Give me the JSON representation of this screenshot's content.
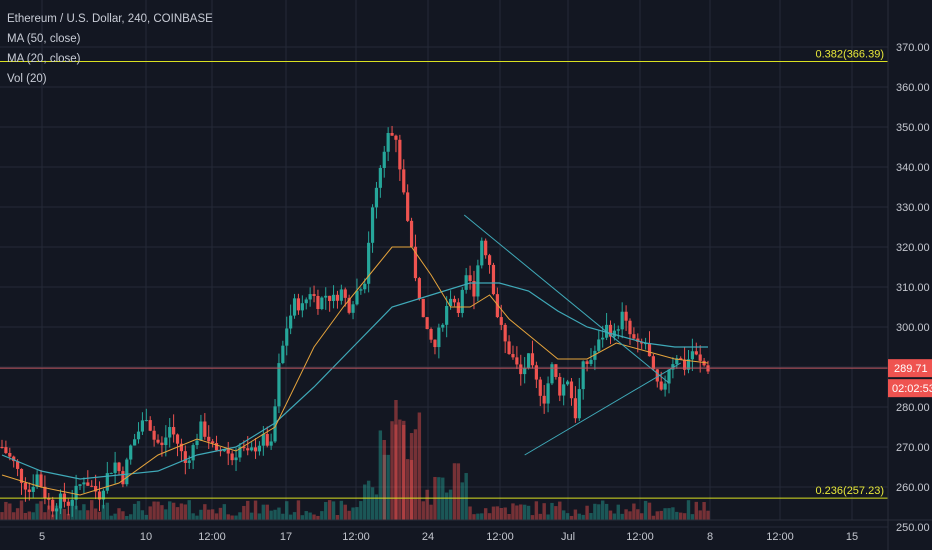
{
  "legend": {
    "title": "Ethereum / U.S. Dollar, 240, COINBASE",
    "ma50": "MA (50, close)",
    "ma20": "MA (20, close)",
    "vol": "Vol (20)"
  },
  "price_tag": {
    "value": "289.71",
    "countdown": "02:02:53"
  },
  "colors": {
    "background": "#131722",
    "grid": "#252a38",
    "up": "#26a69a",
    "down": "#ef5350",
    "ma50": "#3fa9b8",
    "ma20": "#e6a43c",
    "fib": "#d9e021",
    "price_line": "#c0555f",
    "trendline": "#3fa9b8"
  },
  "chart_data": {
    "type": "candlestick",
    "title": "Ethereum / U.S. Dollar, 240, COINBASE",
    "y_ticks": [
      250,
      260,
      270,
      280,
      290,
      300,
      310,
      320,
      330,
      340,
      350,
      360,
      370
    ],
    "y_tick_labels": [
      "250.00",
      "260.00",
      "270.00",
      "280.00",
      "290.00",
      "300.00",
      "310.00",
      "320.00",
      "330.00",
      "340.00",
      "350.00",
      "360.00",
      "370.00"
    ],
    "ylim": [
      247,
      380
    ],
    "x_tick_labels": [
      "5",
      "10",
      "12:00",
      "17",
      "12:00",
      "24",
      "12:00",
      "Jul",
      "12:00",
      "8",
      "12:00",
      "15"
    ],
    "fib_levels": [
      {
        "label": "0.382(366.39)",
        "value": 366.39
      },
      {
        "label": "0.236(257.23)",
        "value": 257.23
      }
    ],
    "last_price": 289.71,
    "countdown": "02:02:53",
    "grid": true,
    "price_path": [
      [
        0,
        270
      ],
      [
        6,
        266
      ],
      [
        10,
        262
      ],
      [
        14,
        259
      ],
      [
        18,
        263
      ],
      [
        22,
        258
      ],
      [
        26,
        255
      ],
      [
        30,
        257
      ],
      [
        34,
        256
      ],
      [
        38,
        259
      ],
      [
        42,
        262
      ],
      [
        46,
        260
      ],
      [
        50,
        258
      ],
      [
        54,
        263
      ],
      [
        58,
        266
      ],
      [
        62,
        262
      ],
      [
        66,
        270
      ],
      [
        70,
        274
      ],
      [
        74,
        278
      ],
      [
        78,
        272
      ],
      [
        82,
        270
      ],
      [
        86,
        275
      ],
      [
        90,
        271
      ],
      [
        94,
        266
      ],
      [
        98,
        270
      ],
      [
        102,
        275
      ],
      [
        106,
        272
      ],
      [
        110,
        268
      ],
      [
        114,
        270
      ],
      [
        118,
        267
      ],
      [
        122,
        270
      ],
      [
        126,
        268
      ],
      [
        130,
        270
      ],
      [
        134,
        272
      ],
      [
        138,
        270
      ],
      [
        142,
        290
      ],
      [
        146,
        300
      ],
      [
        150,
        306
      ],
      [
        154,
        305
      ],
      [
        158,
        309
      ],
      [
        162,
        306
      ],
      [
        166,
        308
      ],
      [
        170,
        307
      ],
      [
        174,
        309
      ],
      [
        178,
        305
      ],
      [
        182,
        309
      ],
      [
        186,
        312
      ],
      [
        190,
        330
      ],
      [
        194,
        340
      ],
      [
        198,
        350
      ],
      [
        202,
        346
      ],
      [
        206,
        334
      ],
      [
        210,
        320
      ],
      [
        214,
        306
      ],
      [
        218,
        298
      ],
      [
        222,
        295
      ],
      [
        226,
        302
      ],
      [
        230,
        308
      ],
      [
        234,
        305
      ],
      [
        238,
        312
      ],
      [
        242,
        309
      ],
      [
        246,
        322
      ],
      [
        250,
        316
      ],
      [
        254,
        303
      ],
      [
        258,
        296
      ],
      [
        262,
        292
      ],
      [
        266,
        288
      ],
      [
        270,
        292
      ],
      [
        274,
        286
      ],
      [
        278,
        282
      ],
      [
        282,
        290
      ],
      [
        286,
        284
      ],
      [
        290,
        287
      ],
      [
        294,
        278
      ],
      [
        298,
        290
      ],
      [
        302,
        292
      ],
      [
        306,
        296
      ],
      [
        310,
        300
      ],
      [
        314,
        298
      ],
      [
        318,
        303
      ],
      [
        322,
        298
      ],
      [
        326,
        295
      ],
      [
        330,
        296
      ],
      [
        334,
        288
      ],
      [
        338,
        283
      ],
      [
        342,
        290
      ],
      [
        346,
        293
      ],
      [
        350,
        290
      ],
      [
        354,
        294
      ],
      [
        358,
        291
      ],
      [
        362,
        289.71
      ]
    ],
    "ma50_path": [
      [
        0,
        268
      ],
      [
        20,
        264
      ],
      [
        40,
        262
      ],
      [
        60,
        263
      ],
      [
        80,
        264
      ],
      [
        100,
        268
      ],
      [
        120,
        270
      ],
      [
        140,
        276
      ],
      [
        160,
        285
      ],
      [
        180,
        295
      ],
      [
        200,
        305
      ],
      [
        220,
        308
      ],
      [
        240,
        311
      ],
      [
        255,
        311
      ],
      [
        270,
        309
      ],
      [
        285,
        304
      ],
      [
        300,
        300
      ],
      [
        315,
        298
      ],
      [
        330,
        296
      ],
      [
        345,
        295
      ],
      [
        362,
        295
      ]
    ],
    "ma20_path": [
      [
        0,
        263
      ],
      [
        20,
        260
      ],
      [
        40,
        258
      ],
      [
        60,
        261
      ],
      [
        80,
        268
      ],
      [
        100,
        272
      ],
      [
        120,
        269
      ],
      [
        140,
        275
      ],
      [
        160,
        295
      ],
      [
        175,
        305
      ],
      [
        190,
        314
      ],
      [
        200,
        320
      ],
      [
        210,
        320
      ],
      [
        220,
        313
      ],
      [
        230,
        305
      ],
      [
        240,
        305
      ],
      [
        250,
        308
      ],
      [
        260,
        302
      ],
      [
        270,
        298
      ],
      [
        285,
        292
      ],
      [
        300,
        292
      ],
      [
        315,
        296
      ],
      [
        330,
        294
      ],
      [
        345,
        292
      ],
      [
        362,
        291
      ]
    ],
    "trendlines": [
      {
        "name": "upper-trendline",
        "from": [
          237,
          328
        ],
        "to": [
          342,
          286
        ]
      },
      {
        "name": "lower-trendline",
        "from": [
          268,
          268
        ],
        "to": [
          348,
          291
        ]
      }
    ]
  }
}
